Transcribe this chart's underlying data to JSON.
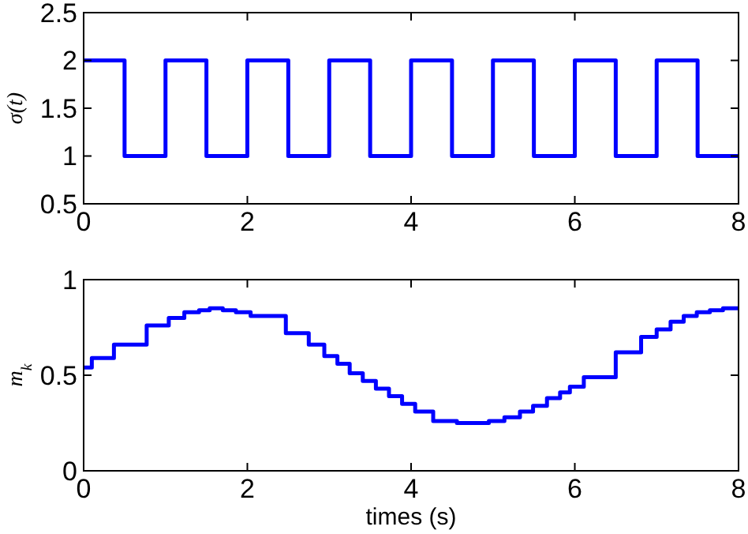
{
  "chart_data": [
    {
      "type": "step",
      "ylabel": "σ(t)",
      "xlim": [
        0,
        8
      ],
      "ylim": [
        0.5,
        2.5
      ],
      "xticks": [
        0,
        2,
        4,
        6,
        8
      ],
      "yticks": [
        0.5,
        1,
        1.5,
        2,
        2.5
      ],
      "grid": false,
      "series": [
        {
          "color": "#0000ff",
          "x": [
            0,
            0.5,
            1,
            1.5,
            2,
            2.5,
            3,
            3.5,
            4,
            4.5,
            5,
            5.5,
            6,
            6.5,
            7,
            7.5,
            8
          ],
          "values": [
            2,
            1,
            2,
            1,
            2,
            1,
            2,
            1,
            2,
            1,
            2,
            1,
            2,
            1,
            2,
            1,
            1
          ]
        }
      ]
    },
    {
      "type": "step",
      "ylabel": "m$_{k}$",
      "xlabel": "times (s)",
      "xlim": [
        0,
        8
      ],
      "ylim": [
        0,
        1
      ],
      "xticks": [
        0,
        2,
        4,
        6,
        8
      ],
      "yticks": [
        0,
        0.5,
        1
      ],
      "grid": false,
      "series": [
        {
          "color": "#0000ff",
          "x": [
            0,
            0.1,
            0.37,
            0.77,
            1.04,
            1.23,
            1.41,
            1.54,
            1.7,
            1.86,
            2.04,
            2.47,
            2.75,
            2.94,
            3.1,
            3.25,
            3.41,
            3.57,
            3.73,
            3.89,
            4.05,
            4.27,
            4.56,
            4.95,
            5.14,
            5.33,
            5.49,
            5.66,
            5.82,
            5.94,
            6.11,
            6.5,
            6.81,
            7.0,
            7.17,
            7.33,
            7.49,
            7.65,
            7.81,
            8
          ],
          "values": [
            0.54,
            0.59,
            0.66,
            0.76,
            0.8,
            0.83,
            0.84,
            0.85,
            0.84,
            0.83,
            0.81,
            0.72,
            0.66,
            0.6,
            0.56,
            0.51,
            0.47,
            0.43,
            0.39,
            0.35,
            0.31,
            0.26,
            0.25,
            0.26,
            0.28,
            0.31,
            0.34,
            0.38,
            0.41,
            0.44,
            0.49,
            0.62,
            0.7,
            0.74,
            0.78,
            0.81,
            0.83,
            0.84,
            0.85,
            0.85
          ]
        }
      ]
    }
  ]
}
